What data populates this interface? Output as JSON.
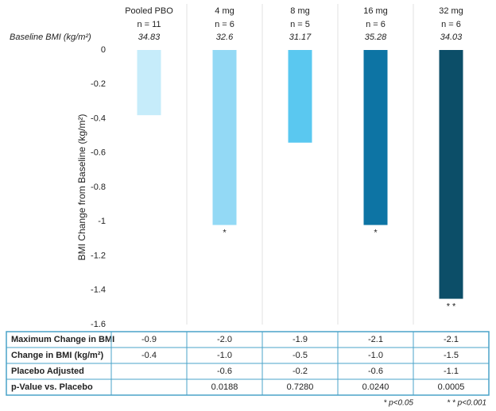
{
  "chart_data": {
    "type": "bar",
    "categories": [
      "Pooled PBO",
      "4 mg",
      "8 mg",
      "16 mg",
      "32 mg"
    ],
    "n_labels": [
      "n = 11",
      "n = 6",
      "n = 5",
      "n = 6",
      "n = 6"
    ],
    "baseline_label": "Baseline BMI (kg/m²)",
    "baseline_values": [
      34.83,
      32.6,
      31.17,
      35.28,
      34.03
    ],
    "values": [
      -0.38,
      -1.02,
      -0.54,
      -1.02,
      -1.45
    ],
    "colors": [
      "#c6ecfa",
      "#93d9f5",
      "#5ac8f0",
      "#0d74a4",
      "#0c4e68"
    ],
    "significance": [
      null,
      "*",
      null,
      "*",
      "* *"
    ],
    "y_label": "BMI Change from Baseline (kg/m²)",
    "ylim": [
      -1.6,
      0
    ],
    "yticks": [
      0,
      -0.2,
      -0.4,
      -0.6,
      -0.8,
      -1,
      -1.2,
      -1.4,
      -1.6
    ]
  },
  "table": {
    "rows": [
      {
        "label": "Maximum Change in BMI",
        "cells": [
          "-0.9",
          "-2.0",
          "-1.9",
          "-2.1",
          "-2.1"
        ]
      },
      {
        "label": "Change in BMI (kg/m²)",
        "cells": [
          "-0.4",
          "-1.0",
          "-0.5",
          "-1.0",
          "-1.5"
        ]
      },
      {
        "label": "Placebo Adjusted",
        "cells": [
          null,
          "-0.6",
          "-0.2",
          "-0.6",
          "-1.1"
        ]
      },
      {
        "label": "p-Value vs. Placebo",
        "cells": [
          null,
          "0.0188",
          "0.7280",
          "0.0240",
          "0.0005"
        ]
      }
    ]
  },
  "footnotes": [
    "* p<0.05",
    "* * p<0.001"
  ]
}
